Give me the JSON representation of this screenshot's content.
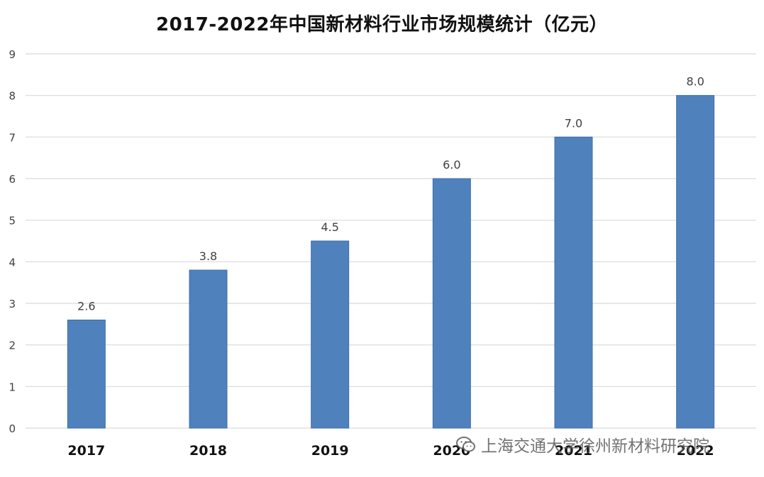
{
  "chart_data": {
    "type": "bar",
    "title": "2017-2022年中国新材料行业市场规模统计（亿元）",
    "categories": [
      "2017",
      "2018",
      "2019",
      "2020",
      "2021",
      "2022"
    ],
    "values": [
      2.6,
      3.8,
      4.5,
      6.0,
      7.0,
      8.0
    ],
    "data_labels": [
      "2.6",
      "3.8",
      "4.5",
      "6.0",
      "7.0",
      "8.0"
    ],
    "xlabel": "",
    "ylabel": "",
    "ylim": [
      0,
      9
    ],
    "yticks": [
      "0",
      "1",
      "2",
      "3",
      "4",
      "5",
      "6",
      "7",
      "8",
      "9"
    ],
    "grid": true,
    "legend": "none",
    "colors": {
      "bar": "#4f81bd",
      "bar_border": "#3f6fa8",
      "grid": "#d9d9d9",
      "axis_text": "#404040",
      "label_text": "#404040"
    }
  },
  "watermark": {
    "text": "上海交通大学徐州新材料研究院",
    "icon": "wechat-chat-icon"
  }
}
